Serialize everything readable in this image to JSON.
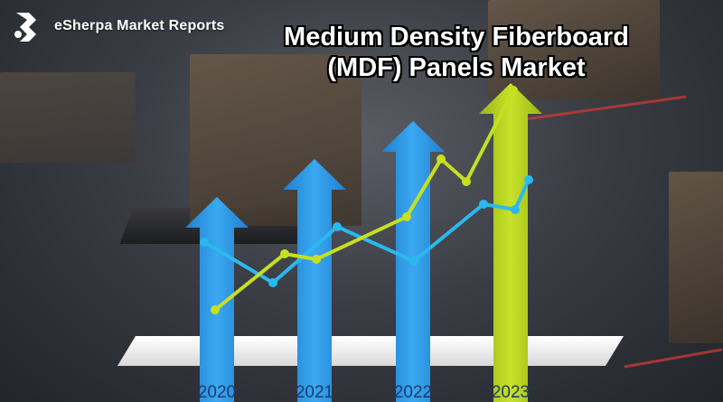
{
  "brand": {
    "name": "eSherpa Market Reports",
    "logo_icon": "esherpa-logo-icon"
  },
  "title": {
    "line1": "Medium Density Fiberboard",
    "line2": "(MDF) Panels Market"
  },
  "chart_data": {
    "type": "bar",
    "categories": [
      "2020",
      "2021",
      "2022",
      "2023"
    ],
    "values": [
      55,
      70,
      85,
      100
    ],
    "colors": [
      "#2e9be8",
      "#2e9be8",
      "#2e9be8",
      "#b6d31a"
    ]
  },
  "colors": {
    "arrow_blue": "#2e9be8",
    "arrow_green": "#b6d31a",
    "line_blue": "#29b9f0",
    "line_green": "#c6e021",
    "platform": "#f2f2f2"
  }
}
